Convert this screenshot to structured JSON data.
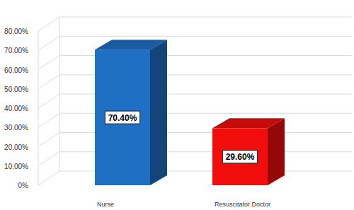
{
  "chart_data": {
    "type": "bar",
    "categories": [
      "Nurse",
      "Resuscitator Doctor"
    ],
    "values": [
      70.4,
      29.6
    ],
    "value_labels": [
      "70.40%",
      "29.60%"
    ],
    "colors": [
      "#1f6fc5",
      "#f20d0d"
    ],
    "ylim": [
      0,
      80
    ],
    "yticks": [
      {
        "value": 0,
        "label": "0%"
      },
      {
        "value": 10,
        "label": "10.00%"
      },
      {
        "value": 20,
        "label": "20.00%"
      },
      {
        "value": 30,
        "label": "30.00%"
      },
      {
        "value": 40,
        "label": "40.00%"
      },
      {
        "value": 50,
        "label": "50.00%"
      },
      {
        "value": 60,
        "label": "60.00%"
      },
      {
        "value": 70,
        "label": "70.00%"
      },
      {
        "value": 80,
        "label": "80.00%"
      }
    ],
    "grid": true,
    "data_labels": true
  }
}
